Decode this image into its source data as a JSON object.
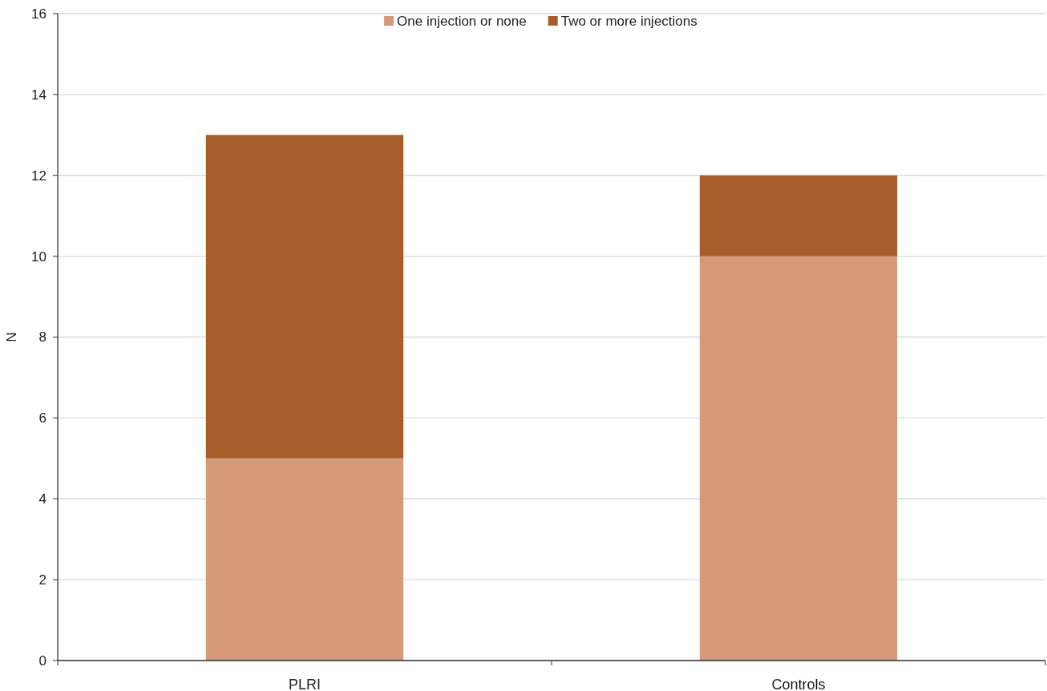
{
  "chart_data": {
    "type": "bar",
    "stacked": true,
    "ylabel": "N",
    "categories": [
      "PLRI",
      "Controls"
    ],
    "series": [
      {
        "name": "One injection or none",
        "color": "#d49a7a",
        "values": [
          5,
          10
        ]
      },
      {
        "name": "Two or more injections",
        "color": "#a85e2a",
        "values": [
          8,
          2
        ]
      }
    ],
    "ylim": [
      0,
      16
    ],
    "yticks": [
      0,
      2,
      4,
      6,
      8,
      10,
      12,
      14,
      16
    ],
    "grid": "y",
    "legend": "top"
  }
}
